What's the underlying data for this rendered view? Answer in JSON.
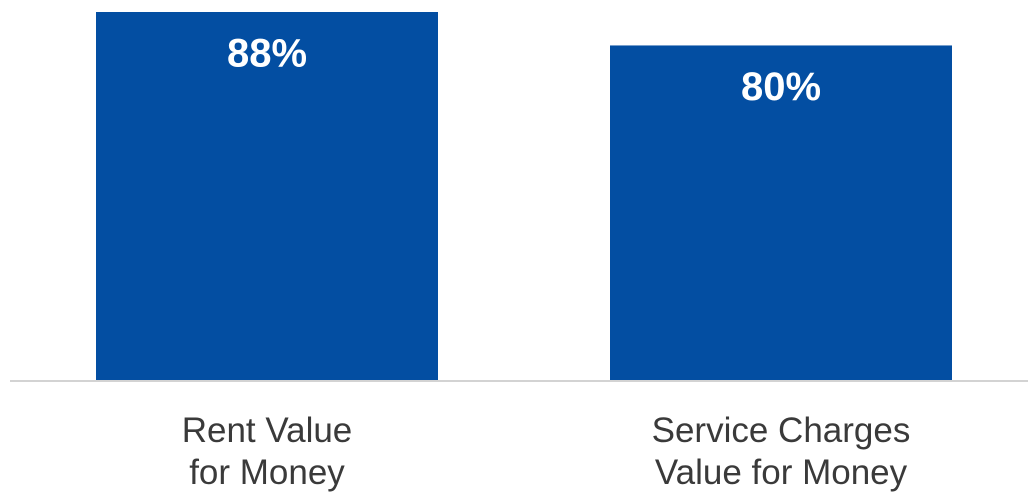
{
  "chart_data": {
    "type": "bar",
    "categories": [
      "Rent Value\nfor Money",
      "Service Charges\nValue for Money"
    ],
    "values": [
      88,
      80
    ],
    "value_labels": [
      "88%",
      "80%"
    ],
    "color": "#034ea2"
  }
}
